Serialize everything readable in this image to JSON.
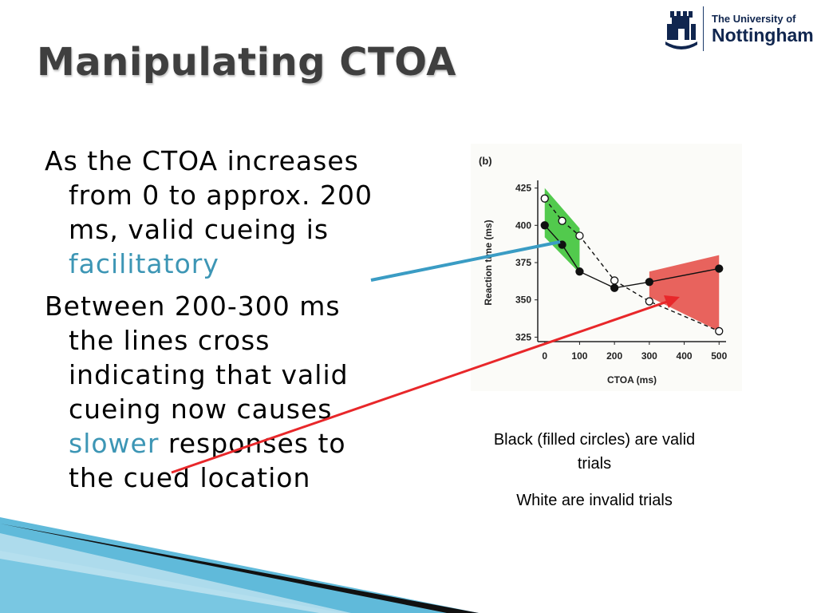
{
  "slide": {
    "title": "Manipulating CTOA",
    "bullet1": {
      "pre": "As the CTOA increases from 0 to approx. 200 ms, valid cueing is ",
      "accent": "facilitatory"
    },
    "bullet2": {
      "pre": "Between 200-300 ms the lines cross indicating that valid cueing now causes ",
      "accent": "slower",
      "post": " responses to the cued location"
    },
    "caption1": "Black (filled circles) are valid trials",
    "caption2": "White are invalid trials"
  },
  "logo": {
    "line1": "The University of",
    "line2": "Nottingham"
  },
  "colors": {
    "accent": "#3d96b5",
    "green_region": "#3fc43a",
    "red_region": "#e5524b",
    "blue_arrow": "#3a9cc4",
    "red_arrow": "#e8272a",
    "title": "#3f3f3f"
  },
  "chart_data": {
    "type": "line",
    "panel_label": "(b)",
    "xlabel": "CTOA (ms)",
    "ylabel": "Reaction time (ms)",
    "x_tick_labels": [
      "0",
      "100",
      "200",
      "300",
      "400",
      "500"
    ],
    "y_tick_labels": [
      "325",
      "350",
      "375",
      "400",
      "425"
    ],
    "xlim": [
      -20,
      520
    ],
    "ylim": [
      322,
      428
    ],
    "series": [
      {
        "style": "filled",
        "line": "solid",
        "x": [
          0,
          50,
          100,
          200,
          300,
          500
        ],
        "y": [
          400,
          387,
          369,
          358,
          362,
          371
        ]
      },
      {
        "style": "open",
        "line": "dashed",
        "x": [
          0,
          50,
          100,
          200,
          300,
          500
        ],
        "y": [
          418,
          403,
          393,
          363,
          349,
          329
        ]
      }
    ],
    "regions": [
      {
        "name": "green",
        "upper": [
          [
            0,
            425
          ],
          [
            100,
            398
          ]
        ],
        "lower": [
          [
            0,
            392
          ],
          [
            100,
            368
          ]
        ]
      },
      {
        "name": "red",
        "upper": [
          [
            300,
            369
          ],
          [
            500,
            380
          ]
        ],
        "lower": [
          [
            300,
            352
          ],
          [
            500,
            329
          ]
        ]
      }
    ]
  }
}
